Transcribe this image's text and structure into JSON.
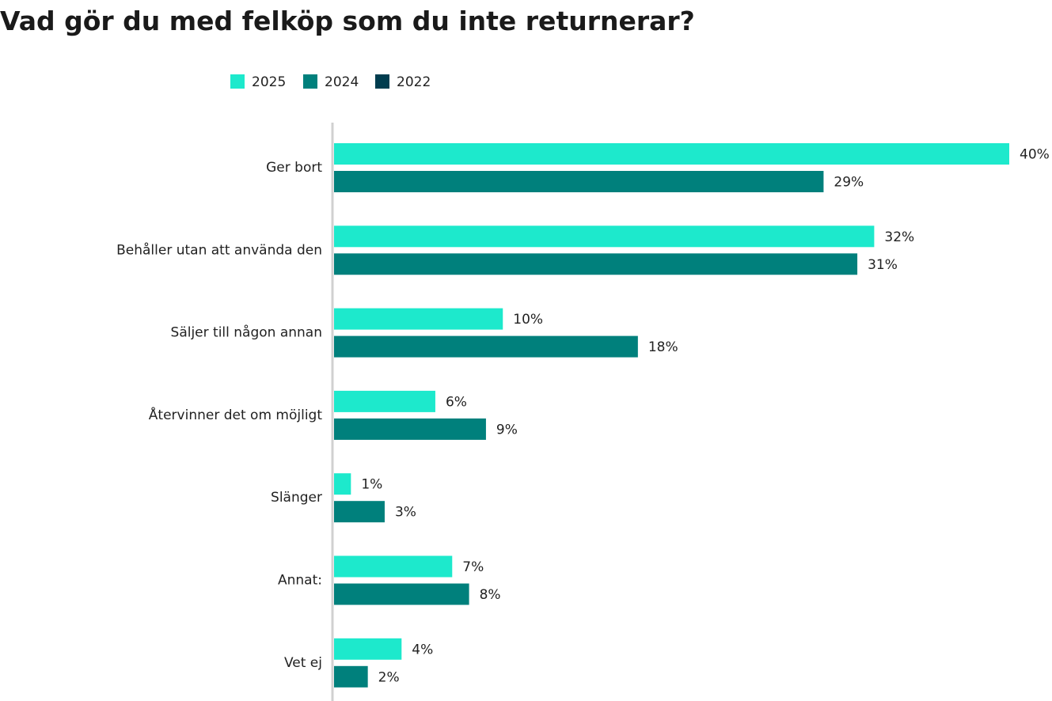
{
  "chart_data": {
    "type": "bar",
    "orientation": "horizontal",
    "title": "Vad gör du med felköp som du inte returnerar?",
    "categories": [
      "Ger bort",
      "Behåller utan att använda den",
      "Säljer till någon annan",
      "Återvinner det om möjligt",
      "Slänger",
      "Annat:",
      "Vet ej"
    ],
    "series": [
      {
        "name": "2025",
        "color": "#1de9cc",
        "values": [
          40,
          32,
          10,
          6,
          1,
          7,
          4
        ],
        "value_labels": [
          "40%",
          "32%",
          "10%",
          "6%",
          "1%",
          "7%",
          "4%"
        ]
      },
      {
        "name": "2024",
        "color": "#00807c",
        "values": [
          29,
          31,
          18,
          9,
          3,
          8,
          2
        ],
        "value_labels": [
          "29%",
          "31%",
          "18%",
          "9%",
          "3%",
          "8%",
          "2%"
        ]
      },
      {
        "name": "2022",
        "color": "#003d4f",
        "values": [
          null,
          null,
          null,
          null,
          null,
          null,
          null
        ]
      }
    ]
  }
}
